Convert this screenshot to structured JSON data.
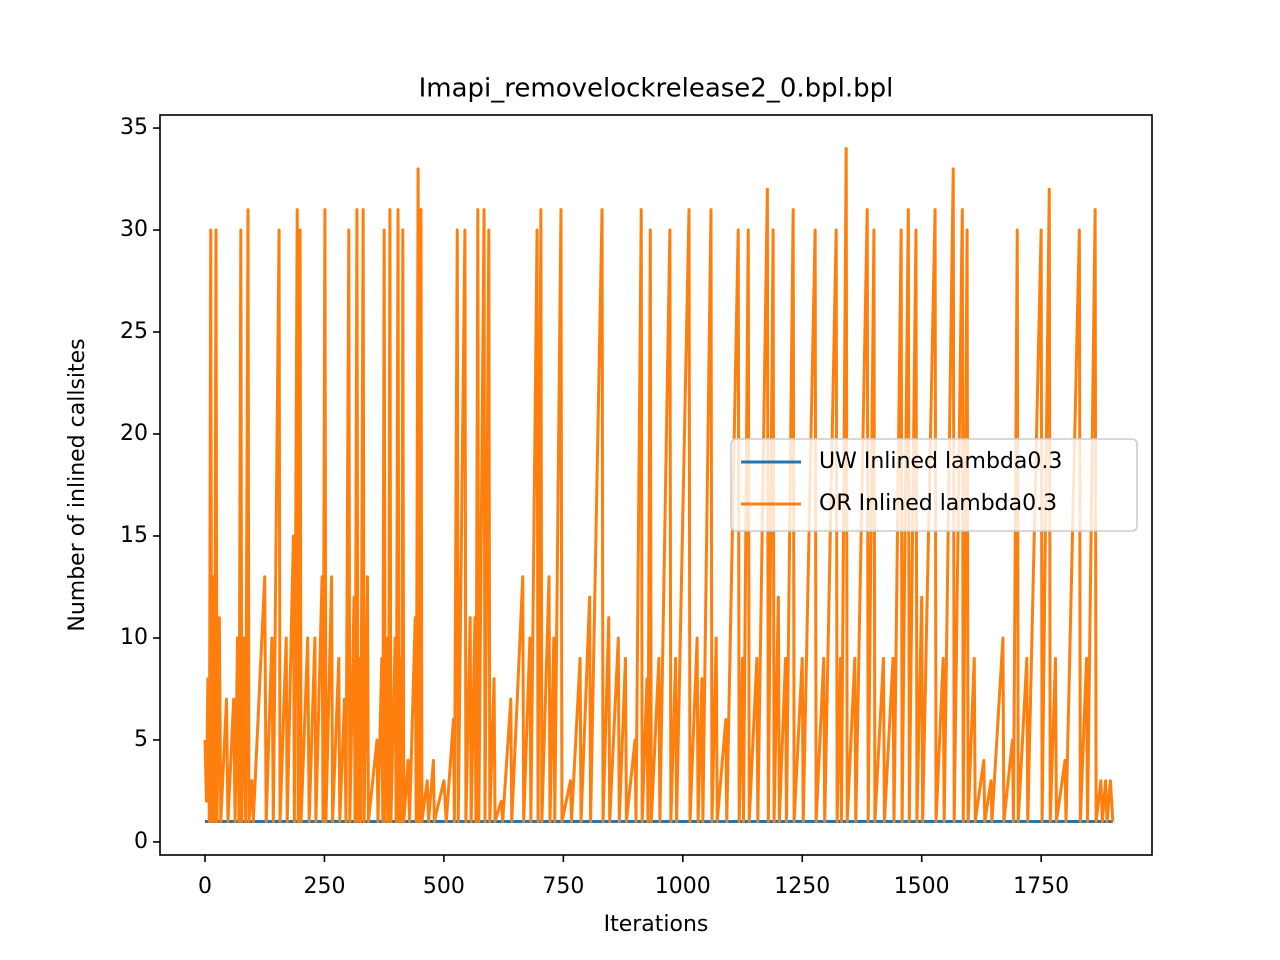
{
  "chart_data": {
    "type": "line",
    "title": "Imapi_removelockrelease2_0.bpl.bpl",
    "xlabel": "Iterations",
    "ylabel": "Number of inlined callsites",
    "xlim": [
      -94.2,
      1982
    ],
    "ylim": [
      -0.64,
      35.64
    ],
    "xticks": [
      0,
      250,
      500,
      750,
      1000,
      1250,
      1500,
      1750
    ],
    "yticks": [
      0,
      5,
      10,
      15,
      20,
      25,
      30,
      35
    ],
    "legend": "center right",
    "series": [
      {
        "name": "UW Inlined lambda0.3",
        "color": "#1f77b4",
        "x": [
          0,
          1900
        ],
        "values": [
          1,
          1
        ]
      },
      {
        "name": "OR Inlined lambda0.3",
        "color": "#ff7f0e",
        "x": [
          0,
          3,
          6,
          9,
          12,
          14,
          18,
          20,
          23,
          25,
          30,
          33,
          45,
          48,
          60,
          63,
          68,
          71,
          75,
          77,
          82,
          85,
          90,
          92,
          98,
          101,
          125,
          128,
          140,
          143,
          155,
          157,
          170,
          172,
          185,
          187,
          193,
          195,
          199,
          201,
          215,
          218,
          230,
          232,
          245,
          247,
          251,
          253,
          265,
          267,
          280,
          282,
          292,
          295,
          301,
          303,
          312,
          314,
          318,
          320,
          324,
          326,
          331,
          333,
          340,
          342,
          360,
          362,
          370,
          372,
          375,
          377,
          382,
          384,
          387,
          389,
          398,
          400,
          404,
          406,
          410,
          412,
          414,
          416,
          425,
          428,
          440,
          442,
          446,
          448,
          452,
          454,
          465,
          468,
          478,
          480,
          500,
          505,
          520,
          522,
          528,
          530,
          544,
          546,
          555,
          557,
          565,
          567,
          571,
          573,
          584,
          586,
          594,
          596,
          605,
          607,
          620,
          623,
          640,
          642,
          665,
          667,
          680,
          682,
          695,
          697,
          703,
          705,
          720,
          722,
          730,
          732,
          745,
          747,
          765,
          767,
          785,
          787,
          805,
          807,
          831,
          833,
          845,
          847,
          865,
          867,
          880,
          882,
          900,
          902,
          913,
          915,
          925,
          927,
          932,
          934,
          950,
          952,
          973,
          975,
          985,
          987,
          1013,
          1015,
          1030,
          1032,
          1040,
          1042,
          1059,
          1061,
          1070,
          1072,
          1090,
          1092,
          1116,
          1118,
          1125,
          1127,
          1137,
          1139,
          1155,
          1157,
          1177,
          1179,
          1189,
          1191,
          1200,
          1202,
          1215,
          1217,
          1231,
          1233,
          1250,
          1252,
          1277,
          1279,
          1295,
          1297,
          1321,
          1323,
          1330,
          1332,
          1342,
          1344,
          1360,
          1362,
          1386,
          1388,
          1400,
          1402,
          1420,
          1422,
          1440,
          1442,
          1457,
          1459,
          1472,
          1474,
          1488,
          1490,
          1500,
          1502,
          1528,
          1530,
          1545,
          1547,
          1566,
          1568,
          1585,
          1587,
          1595,
          1597,
          1610,
          1612,
          1630,
          1632,
          1645,
          1647,
          1670,
          1672,
          1690,
          1692,
          1700,
          1702,
          1720,
          1722,
          1750,
          1752,
          1767,
          1769,
          1780,
          1782,
          1800,
          1802,
          1830,
          1832,
          1845,
          1847,
          1863,
          1865,
          1875,
          1878,
          1885,
          1888,
          1895,
          1900
        ],
        "values": [
          5,
          2,
          8,
          1,
          30,
          1,
          13,
          1,
          30,
          1,
          11,
          1,
          7,
          1,
          7,
          1,
          10,
          1,
          30,
          1,
          10,
          1,
          31,
          1,
          3,
          1,
          13,
          1,
          10,
          1,
          30,
          1,
          10,
          1,
          15,
          1,
          31,
          1,
          30,
          1,
          10,
          1,
          10,
          1,
          13,
          1,
          31,
          1,
          13,
          1,
          9,
          1,
          7,
          1,
          30,
          1,
          12,
          1,
          31,
          1,
          9,
          1,
          31,
          1,
          13,
          1,
          5,
          1,
          9,
          1,
          30,
          1,
          10,
          1,
          31,
          1,
          10,
          1,
          31,
          1,
          9,
          1,
          30,
          1,
          4,
          1,
          11,
          1,
          33,
          1,
          31,
          1,
          3,
          1,
          4,
          1,
          3,
          1,
          6,
          1,
          30,
          1,
          30,
          1,
          11,
          1,
          11,
          1,
          31,
          1,
          31,
          1,
          30,
          1,
          8,
          1,
          2,
          1,
          7,
          1,
          13,
          1,
          10,
          1,
          30,
          1,
          31,
          1,
          13,
          1,
          10,
          1,
          31,
          1,
          3,
          1,
          9,
          1,
          12,
          1,
          31,
          1,
          11,
          1,
          10,
          1,
          9,
          1,
          5,
          1,
          31,
          1,
          8,
          1,
          30,
          1,
          9,
          1,
          30,
          1,
          9,
          1,
          31,
          1,
          10,
          1,
          8,
          1,
          31,
          1,
          10,
          1,
          6,
          1,
          30,
          1,
          9,
          1,
          30,
          1,
          9,
          1,
          32,
          1,
          30,
          1,
          12,
          1,
          9,
          1,
          31,
          1,
          9,
          1,
          30,
          1,
          9,
          1,
          30,
          1,
          9,
          1,
          34,
          1,
          9,
          1,
          31,
          1,
          30,
          1,
          9,
          1,
          9,
          1,
          30,
          1,
          31,
          1,
          30,
          1,
          12,
          1,
          31,
          1,
          9,
          1,
          33,
          1,
          31,
          1,
          30,
          1,
          9,
          1,
          4,
          1,
          3,
          1,
          10,
          1,
          5,
          1,
          30,
          1,
          9,
          1,
          30,
          1,
          32,
          1,
          9,
          1,
          4,
          1,
          30,
          1,
          9,
          1,
          31,
          1,
          3,
          1,
          3,
          1,
          3,
          1
        ]
      }
    ]
  }
}
